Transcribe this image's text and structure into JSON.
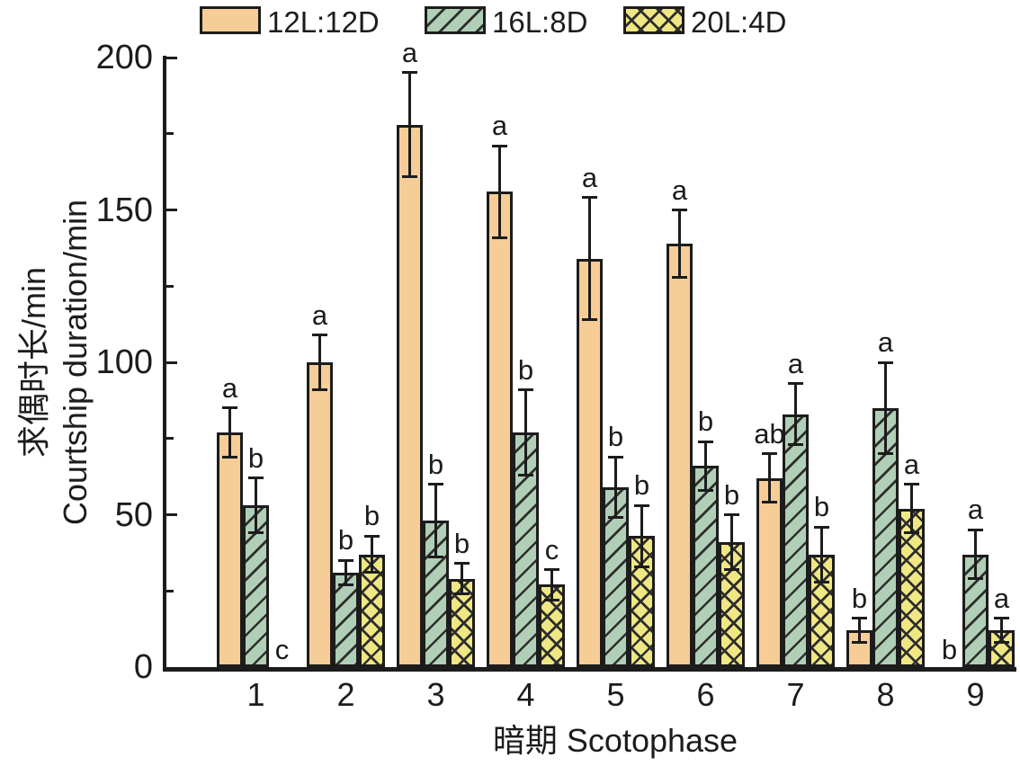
{
  "chart_data": {
    "type": "bar",
    "title": "",
    "xlabel": "暗期 Scotophase",
    "ylabel_lines": [
      "求偶时长/min",
      "Courtship duration/min"
    ],
    "categories": [
      "1",
      "2",
      "3",
      "4",
      "5",
      "6",
      "7",
      "8",
      "9"
    ],
    "ylim": [
      0,
      200
    ],
    "y_major_ticks": [
      0,
      50,
      100,
      150,
      200
    ],
    "y_minor_ticks": [
      25,
      75,
      125,
      175
    ],
    "grid": false,
    "legend_position": "top",
    "error_bars": true,
    "series": [
      {
        "name": "12L:12D",
        "fill": "#F6CD96",
        "hatch": "none",
        "values": [
          77,
          100,
          178,
          156,
          134,
          139,
          62,
          12,
          0
        ],
        "errors": [
          8,
          9,
          17,
          15,
          20,
          11,
          8,
          4,
          0
        ],
        "sig_letters": [
          "a",
          "a",
          "a",
          "a",
          "a",
          "a",
          "ab",
          "b",
          "b"
        ]
      },
      {
        "name": "16L:8D",
        "fill": "#B0CFB6",
        "hatch": "diagonal",
        "values": [
          53,
          31,
          48,
          77,
          59,
          66,
          83,
          85,
          37
        ],
        "errors": [
          9,
          4,
          12,
          14,
          10,
          8,
          10,
          15,
          8
        ],
        "sig_letters": [
          "b",
          "b",
          "b",
          "b",
          "b",
          "b",
          "a",
          "a",
          "a"
        ]
      },
      {
        "name": "20L:4D",
        "fill": "#EFE783",
        "hatch": "cross",
        "values": [
          0,
          37,
          29,
          27,
          43,
          41,
          37,
          52,
          12
        ],
        "errors": [
          0,
          6,
          5,
          5,
          10,
          9,
          9,
          8,
          4
        ],
        "sig_letters": [
          "c",
          "b",
          "b",
          "c",
          "b",
          "b",
          "b",
          "a",
          "a"
        ]
      }
    ],
    "colors": {
      "axis": "#1c1c1c",
      "text": "#1c1c1c",
      "hatch_line": "#2e2e2e"
    }
  }
}
